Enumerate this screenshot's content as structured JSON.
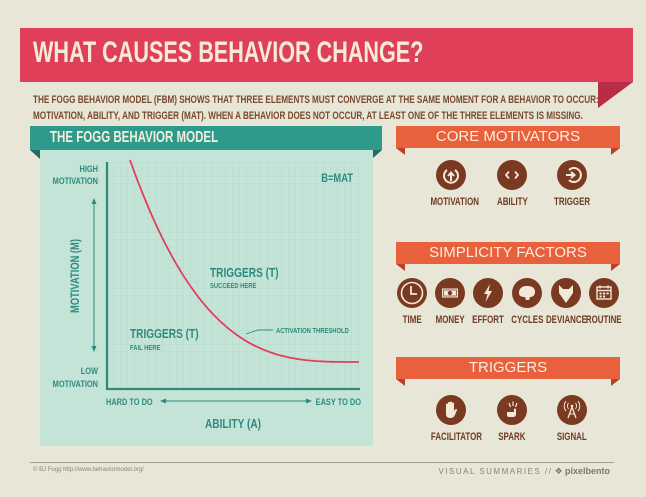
{
  "header": {
    "title": "WHAT CAUSES BEHAVIOR CHANGE?",
    "description_line1": "THE FOGG BEHAVIOR MODEL (FBM) SHOWS THAT THREE ELEMENTS MUST CONVERGE AT THE SAME MOMENT FOR A BEHAVIOR TO OCCUR:",
    "description_line2": "MOTIVATION, ABILITY, AND TRIGGER (MAT). WHEN A BEHAVIOR DOES NOT OCCUR, AT LEAST ONE OF THE THREE ELEMENTS IS MISSING."
  },
  "colors": {
    "title_banner": "#e03f5a",
    "teal": "#2e9a8c",
    "panel": "#c5e4d8",
    "orange": "#e9603c",
    "brown": "#7a3a22",
    "curve": "#e0405a"
  },
  "model": {
    "title": "THE FOGG BEHAVIOR MODEL",
    "formula": "B=MAT",
    "y_high": [
      "HIGH",
      "MOTIVATION"
    ],
    "y_low": [
      "LOW",
      "MOTIVATION"
    ],
    "y_axis_label": "MOTIVATION (M)",
    "x_low": "HARD TO DO",
    "x_high": "EASY TO DO",
    "x_axis_label": "ABILITY (A)",
    "success_title": "TRIGGERS (T)",
    "success_sub": "SUCCEED HERE",
    "fail_title": "TRIGGERS (T)",
    "fail_sub": "FAIL HERE",
    "curve_label": "ACTIVATION THRESHOLD"
  },
  "core_motivators": {
    "title": "CORE MOTIVATORS",
    "items": [
      {
        "label": "MOTIVATION",
        "icon": "power-arrow-up-icon"
      },
      {
        "label": "ABILITY",
        "icon": "code-brackets-icon"
      },
      {
        "label": "TRIGGER",
        "icon": "enter-arrow-icon"
      }
    ]
  },
  "simplicity_factors": {
    "title": "SIMPLICITY FACTORS",
    "items": [
      {
        "label": "TIME",
        "icon": "clock-icon"
      },
      {
        "label": "MONEY",
        "icon": "banknote-icon"
      },
      {
        "label": "EFFORT",
        "icon": "lightning-icon"
      },
      {
        "label": "CYCLES",
        "icon": "brain-icon"
      },
      {
        "label": "DEVIANCE",
        "icon": "wolf-icon"
      },
      {
        "label": "ROUTINE",
        "icon": "calendar-icon"
      }
    ]
  },
  "triggers": {
    "title": "TRIGGERS",
    "items": [
      {
        "label": "FACILITATOR",
        "icon": "hand-icon"
      },
      {
        "label": "SPARK",
        "icon": "spark-hand-icon"
      },
      {
        "label": "SIGNAL",
        "icon": "antenna-icon"
      }
    ]
  },
  "footer": {
    "credit": "© BJ Fogg http://www.behaviormodel.org/",
    "series": "VISUAL SUMMARIES //",
    "brand": "pixelbento"
  }
}
